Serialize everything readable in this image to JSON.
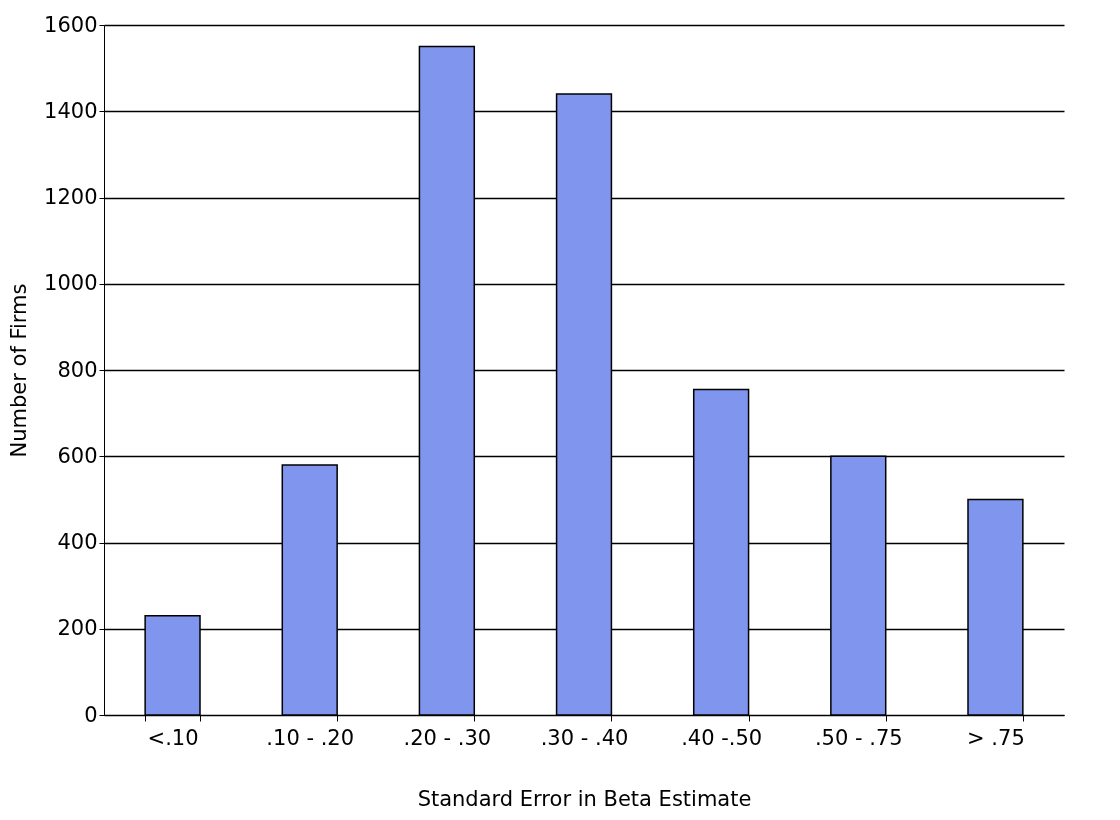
{
  "chart_data": {
    "type": "bar",
    "xlabel": "Standard Error in Beta Estimate",
    "ylabel": "Number of Firms",
    "categories": [
      "<.10",
      ".10 - .20",
      ".20 - .30",
      ".30 - .40",
      ".40 -.50",
      ".50 - .75",
      "> .75"
    ],
    "values": [
      230,
      580,
      1550,
      1440,
      755,
      600,
      500
    ],
    "color": "#7f95ee",
    "ylim": [
      0,
      1600
    ],
    "yticks": [
      0,
      200,
      400,
      600,
      800,
      1000,
      1200,
      1400,
      1600
    ],
    "grid": "y"
  }
}
